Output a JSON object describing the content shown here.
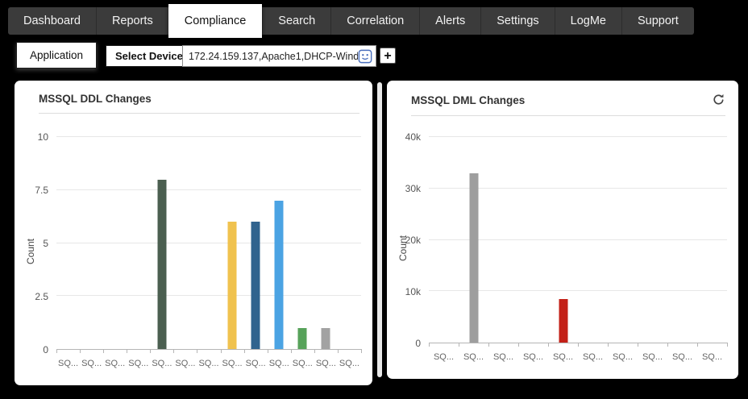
{
  "nav": {
    "items": [
      {
        "label": "Dashboard",
        "active": false
      },
      {
        "label": "Reports",
        "active": false
      },
      {
        "label": "Compliance",
        "active": true
      },
      {
        "label": "Search",
        "active": false
      },
      {
        "label": "Correlation",
        "active": false
      },
      {
        "label": "Alerts",
        "active": false
      },
      {
        "label": "Settings",
        "active": false
      },
      {
        "label": "LogMe",
        "active": false
      },
      {
        "label": "Support",
        "active": false
      }
    ]
  },
  "filter_bar": {
    "application_label": "Application",
    "select_devices_label": "Select Devices",
    "devices_value": "172.24.159.137,Apache1,DHCP-Wind",
    "add_label": "+"
  },
  "icons": {
    "refresh": "refresh-icon",
    "device_selector": "device-selector-icon"
  },
  "colors": {
    "nav_background": "#3b3b3b",
    "page_background": "#000000",
    "panel_background": "#ffffff"
  },
  "chart_data": [
    {
      "type": "bar",
      "title": "MSSQL DDL Changes",
      "xlabel": "",
      "ylabel": "Count",
      "ylim": [
        0,
        10
      ],
      "grid": "horizontal",
      "legend": "none",
      "yticks": [
        {
          "label": "0",
          "value": 0
        },
        {
          "label": "2.5",
          "value": 2.5
        },
        {
          "label": "5",
          "value": 5
        },
        {
          "label": "7.5",
          "value": 7.5
        },
        {
          "label": "10",
          "value": 10
        }
      ],
      "categories": [
        "SQ...",
        "SQ...",
        "SQ...",
        "SQ...",
        "SQ...",
        "SQ...",
        "SQ...",
        "SQ...",
        "SQ...",
        "SQ...",
        "SQ...",
        "SQ...",
        "SQ..."
      ],
      "values": [
        0,
        0,
        0,
        0,
        8,
        0,
        0,
        6,
        6,
        7,
        1,
        1,
        0
      ],
      "colors": [
        "",
        "",
        "",
        "",
        "#4b5f50",
        "",
        "",
        "#f0c24e",
        "#30638e",
        "#4ba3e3",
        "#57a25a",
        "#a2a2a2",
        ""
      ]
    },
    {
      "type": "bar",
      "title": "MSSQL DML Changes",
      "xlabel": "",
      "ylabel": "Count",
      "ylim": [
        0,
        40000
      ],
      "grid": "horizontal",
      "legend": "none",
      "yticks": [
        {
          "label": "0",
          "value": 0
        },
        {
          "label": "10k",
          "value": 10000
        },
        {
          "label": "20k",
          "value": 20000
        },
        {
          "label": "30k",
          "value": 30000
        },
        {
          "label": "40k",
          "value": 40000
        }
      ],
      "categories": [
        "SQ...",
        "SQ...",
        "SQ...",
        "SQ...",
        "SQ...",
        "SQ...",
        "SQ...",
        "SQ...",
        "SQ...",
        "SQ..."
      ],
      "values": [
        0,
        33000,
        0,
        0,
        8400,
        0,
        0,
        0,
        0,
        0
      ],
      "colors": [
        "",
        "#9e9e9e",
        "",
        "",
        "#c32017",
        "",
        "",
        "",
        "",
        ""
      ]
    }
  ]
}
